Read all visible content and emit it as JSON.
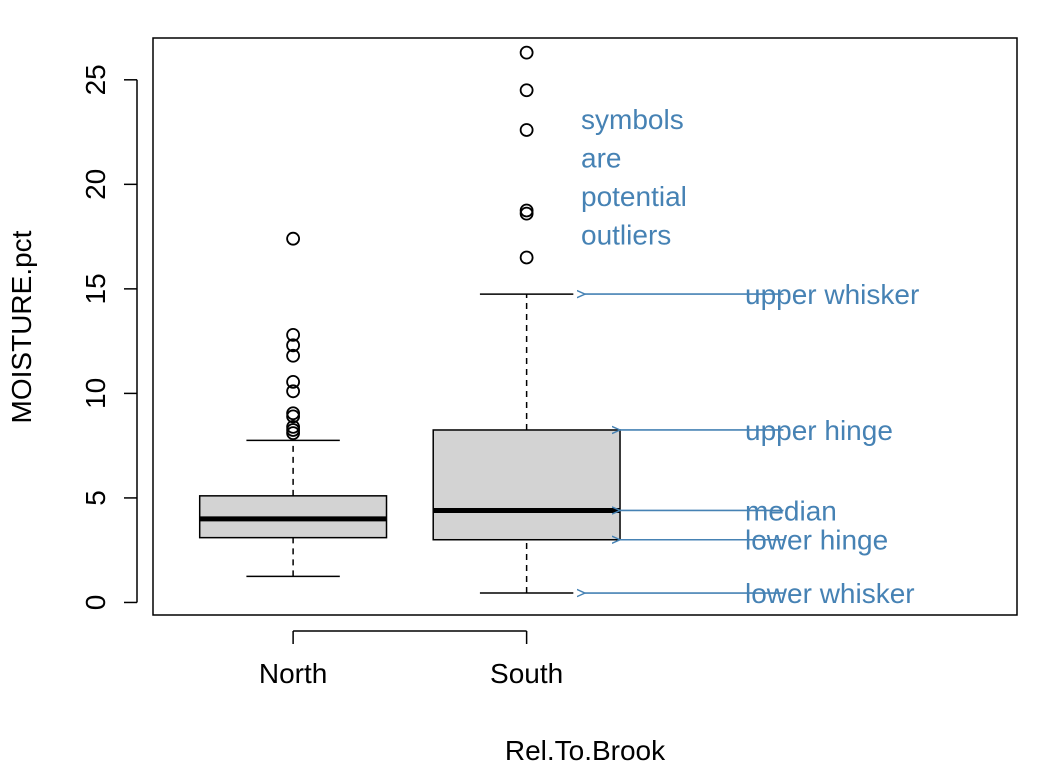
{
  "chart_data": {
    "type": "boxplot",
    "xlabel": "Rel.To.Brook",
    "ylabel": "MOISTURE.pct",
    "categories": [
      "North",
      "South"
    ],
    "ylim": [
      -0.6,
      27.0
    ],
    "xlim": [
      0.4,
      4.1
    ],
    "yticks": [
      0,
      5,
      10,
      15,
      20,
      25
    ],
    "grid": false,
    "boxes": [
      {
        "name": "North",
        "position": 1,
        "lower_whisker": 1.25,
        "lower_hinge": 3.1,
        "median": 4.0,
        "upper_hinge": 5.1,
        "upper_whisker": 7.75,
        "outliers": [
          8.1,
          8.25,
          8.4,
          8.9,
          9.05,
          10.1,
          10.55,
          11.8,
          12.3,
          12.8,
          17.4
        ]
      },
      {
        "name": "South",
        "position": 2,
        "lower_whisker": 0.45,
        "lower_hinge": 3.0,
        "median": 4.4,
        "upper_hinge": 8.25,
        "upper_whisker": 14.75,
        "outliers": [
          16.5,
          18.6,
          18.75,
          22.6,
          24.5,
          26.3
        ]
      }
    ],
    "box_fill": "#d3d3d3",
    "annotation_color": "#4682b4",
    "annotations": [
      {
        "label": "upper whisker",
        "y": 14.75,
        "arrow_tip_x": 2.25
      },
      {
        "label": "upper hinge",
        "y": 8.25,
        "arrow_tip_x": 2.4
      },
      {
        "label": "median",
        "y": 4.4,
        "arrow_tip_x": 2.4
      },
      {
        "label": "lower hinge",
        "y": 3.0,
        "arrow_tip_x": 2.4
      },
      {
        "label": "lower whisker",
        "y": 0.45,
        "arrow_tip_x": 2.25
      }
    ],
    "note_lines": [
      "symbols",
      "are",
      "potential",
      "outliers"
    ]
  }
}
